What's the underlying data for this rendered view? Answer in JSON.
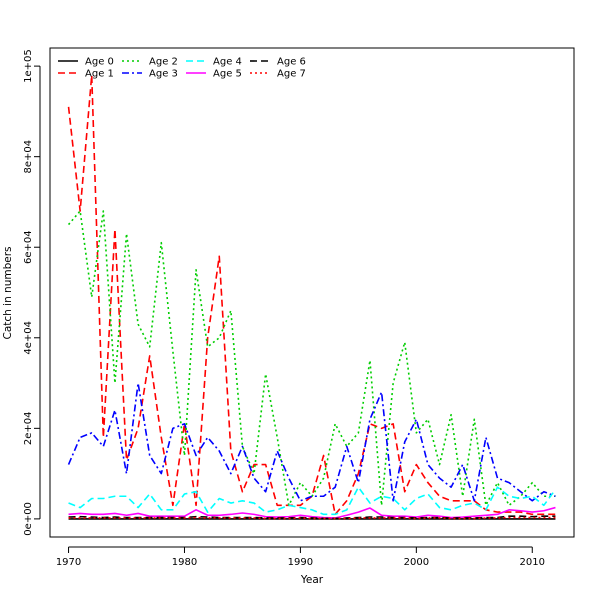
{
  "chart_data": {
    "type": "line",
    "xlabel": "Year",
    "ylabel": "Catch in numbers",
    "xlim": [
      1968.4,
      2013.6
    ],
    "ylim": [
      -4000,
      104000
    ],
    "x_ticks": [
      1970,
      1980,
      1990,
      2000,
      2010
    ],
    "y_ticks": [
      0,
      20000,
      40000,
      60000,
      80000,
      100000
    ],
    "x_tick_labels": [
      "1970",
      "1980",
      "1990",
      "2000",
      "2010"
    ],
    "y_tick_labels": [
      "0e+00",
      "2e+04",
      "4e+04",
      "6e+04",
      "8e+04",
      "1e+05"
    ],
    "legend_position": "top-left",
    "x": [
      1970,
      1971,
      1972,
      1973,
      1974,
      1975,
      1976,
      1977,
      1978,
      1979,
      1980,
      1981,
      1982,
      1983,
      1984,
      1985,
      1986,
      1987,
      1988,
      1989,
      1990,
      1991,
      1992,
      1993,
      1994,
      1995,
      1996,
      1997,
      1998,
      1999,
      2000,
      2001,
      2002,
      2003,
      2004,
      2005,
      2006,
      2007,
      2008,
      2009,
      2010,
      2011,
      2012
    ],
    "series": [
      {
        "name": "Age 0",
        "color": "#000000",
        "dash": "solid",
        "values": [
          0,
          0,
          0,
          0,
          0,
          0,
          0,
          0,
          0,
          0,
          0,
          0,
          0,
          0,
          0,
          0,
          0,
          0,
          0,
          0,
          0,
          0,
          0,
          0,
          0,
          0,
          0,
          0,
          0,
          0,
          0,
          0,
          0,
          0,
          0,
          0,
          0,
          0,
          0,
          0,
          0,
          0,
          0
        ]
      },
      {
        "name": "Age 1",
        "color": "#ff0000",
        "dash": "long",
        "values": [
          91000,
          68000,
          98000,
          18000,
          64000,
          13000,
          20000,
          36000,
          18000,
          3000,
          21000,
          3000,
          40000,
          58000,
          15000,
          6000,
          12000,
          12000,
          3000,
          3000,
          3000,
          5000,
          14000,
          1000,
          4000,
          10000,
          21000,
          20000,
          21000,
          6000,
          12000,
          8000,
          5000,
          4000,
          4000,
          4000,
          2000,
          1500,
          1500,
          1500,
          1000,
          1000,
          1000
        ]
      },
      {
        "name": "Age 2",
        "color": "#00cd00",
        "dash": "dot",
        "values": [
          65000,
          68000,
          49000,
          68000,
          30000,
          63000,
          43000,
          38000,
          61000,
          37000,
          14000,
          55000,
          38000,
          40000,
          46000,
          16000,
          10000,
          32000,
          18000,
          3000,
          8000,
          5000,
          9000,
          21000,
          16000,
          19000,
          35000,
          3000,
          30000,
          39000,
          19000,
          22000,
          12000,
          23000,
          5000,
          22000,
          3000,
          8000,
          3000,
          5000,
          8000,
          5000,
          5000
        ]
      },
      {
        "name": "Age 3",
        "color": "#0000ff",
        "dash": "dashdot",
        "values": [
          12000,
          18000,
          19000,
          16000,
          24000,
          10000,
          30000,
          14000,
          10000,
          20000,
          21000,
          14000,
          18000,
          15000,
          10000,
          16000,
          9000,
          6000,
          15000,
          9000,
          4000,
          5000,
          5000,
          7000,
          16000,
          8000,
          22000,
          28000,
          4000,
          17000,
          22000,
          12000,
          9000,
          7000,
          12000,
          4000,
          18000,
          9000,
          8000,
          6000,
          4000,
          6000,
          5000
        ]
      },
      {
        "name": "Age 4",
        "color": "#00ffff",
        "dash": "long",
        "values": [
          3500,
          2500,
          4500,
          4500,
          5000,
          5000,
          2500,
          5500,
          2000,
          2000,
          5500,
          6000,
          1500,
          4500,
          3500,
          4000,
          3500,
          1500,
          2000,
          3000,
          2500,
          2000,
          1000,
          1000,
          2000,
          7000,
          3500,
          5000,
          4500,
          2000,
          4500,
          5500,
          2500,
          2000,
          3000,
          3500,
          2000,
          7000,
          5000,
          4500,
          5000,
          3000,
          6500
        ]
      },
      {
        "name": "Age 5",
        "color": "#ff00ff",
        "dash": "solid",
        "values": [
          1000,
          1200,
          1000,
          1000,
          1200,
          800,
          1200,
          600,
          600,
          600,
          600,
          2000,
          800,
          800,
          1000,
          1300,
          1000,
          500,
          400,
          500,
          800,
          500,
          300,
          200,
          800,
          1500,
          2400,
          800,
          600,
          600,
          400,
          800,
          600,
          300,
          400,
          600,
          800,
          1000,
          2000,
          1800,
          1500,
          1800,
          2500
        ]
      },
      {
        "name": "Age 6",
        "color": "#000000",
        "dash": "long",
        "values": [
          400,
          500,
          400,
          300,
          400,
          300,
          300,
          300,
          300,
          300,
          300,
          500,
          400,
          300,
          300,
          300,
          300,
          200,
          200,
          200,
          300,
          200,
          100,
          100,
          200,
          300,
          400,
          400,
          300,
          300,
          200,
          300,
          300,
          200,
          200,
          200,
          300,
          300,
          600,
          600,
          500,
          600,
          600
        ]
      },
      {
        "name": "Age 7",
        "color": "#ff0000",
        "dash": "dot",
        "values": [
          200,
          200,
          200,
          200,
          200,
          200,
          200,
          200,
          200,
          200,
          200,
          300,
          200,
          200,
          200,
          200,
          200,
          100,
          100,
          100,
          200,
          100,
          100,
          100,
          100,
          200,
          200,
          200,
          200,
          200,
          100,
          200,
          200,
          100,
          100,
          100,
          200,
          200,
          300,
          300,
          300,
          300,
          300
        ]
      }
    ]
  }
}
